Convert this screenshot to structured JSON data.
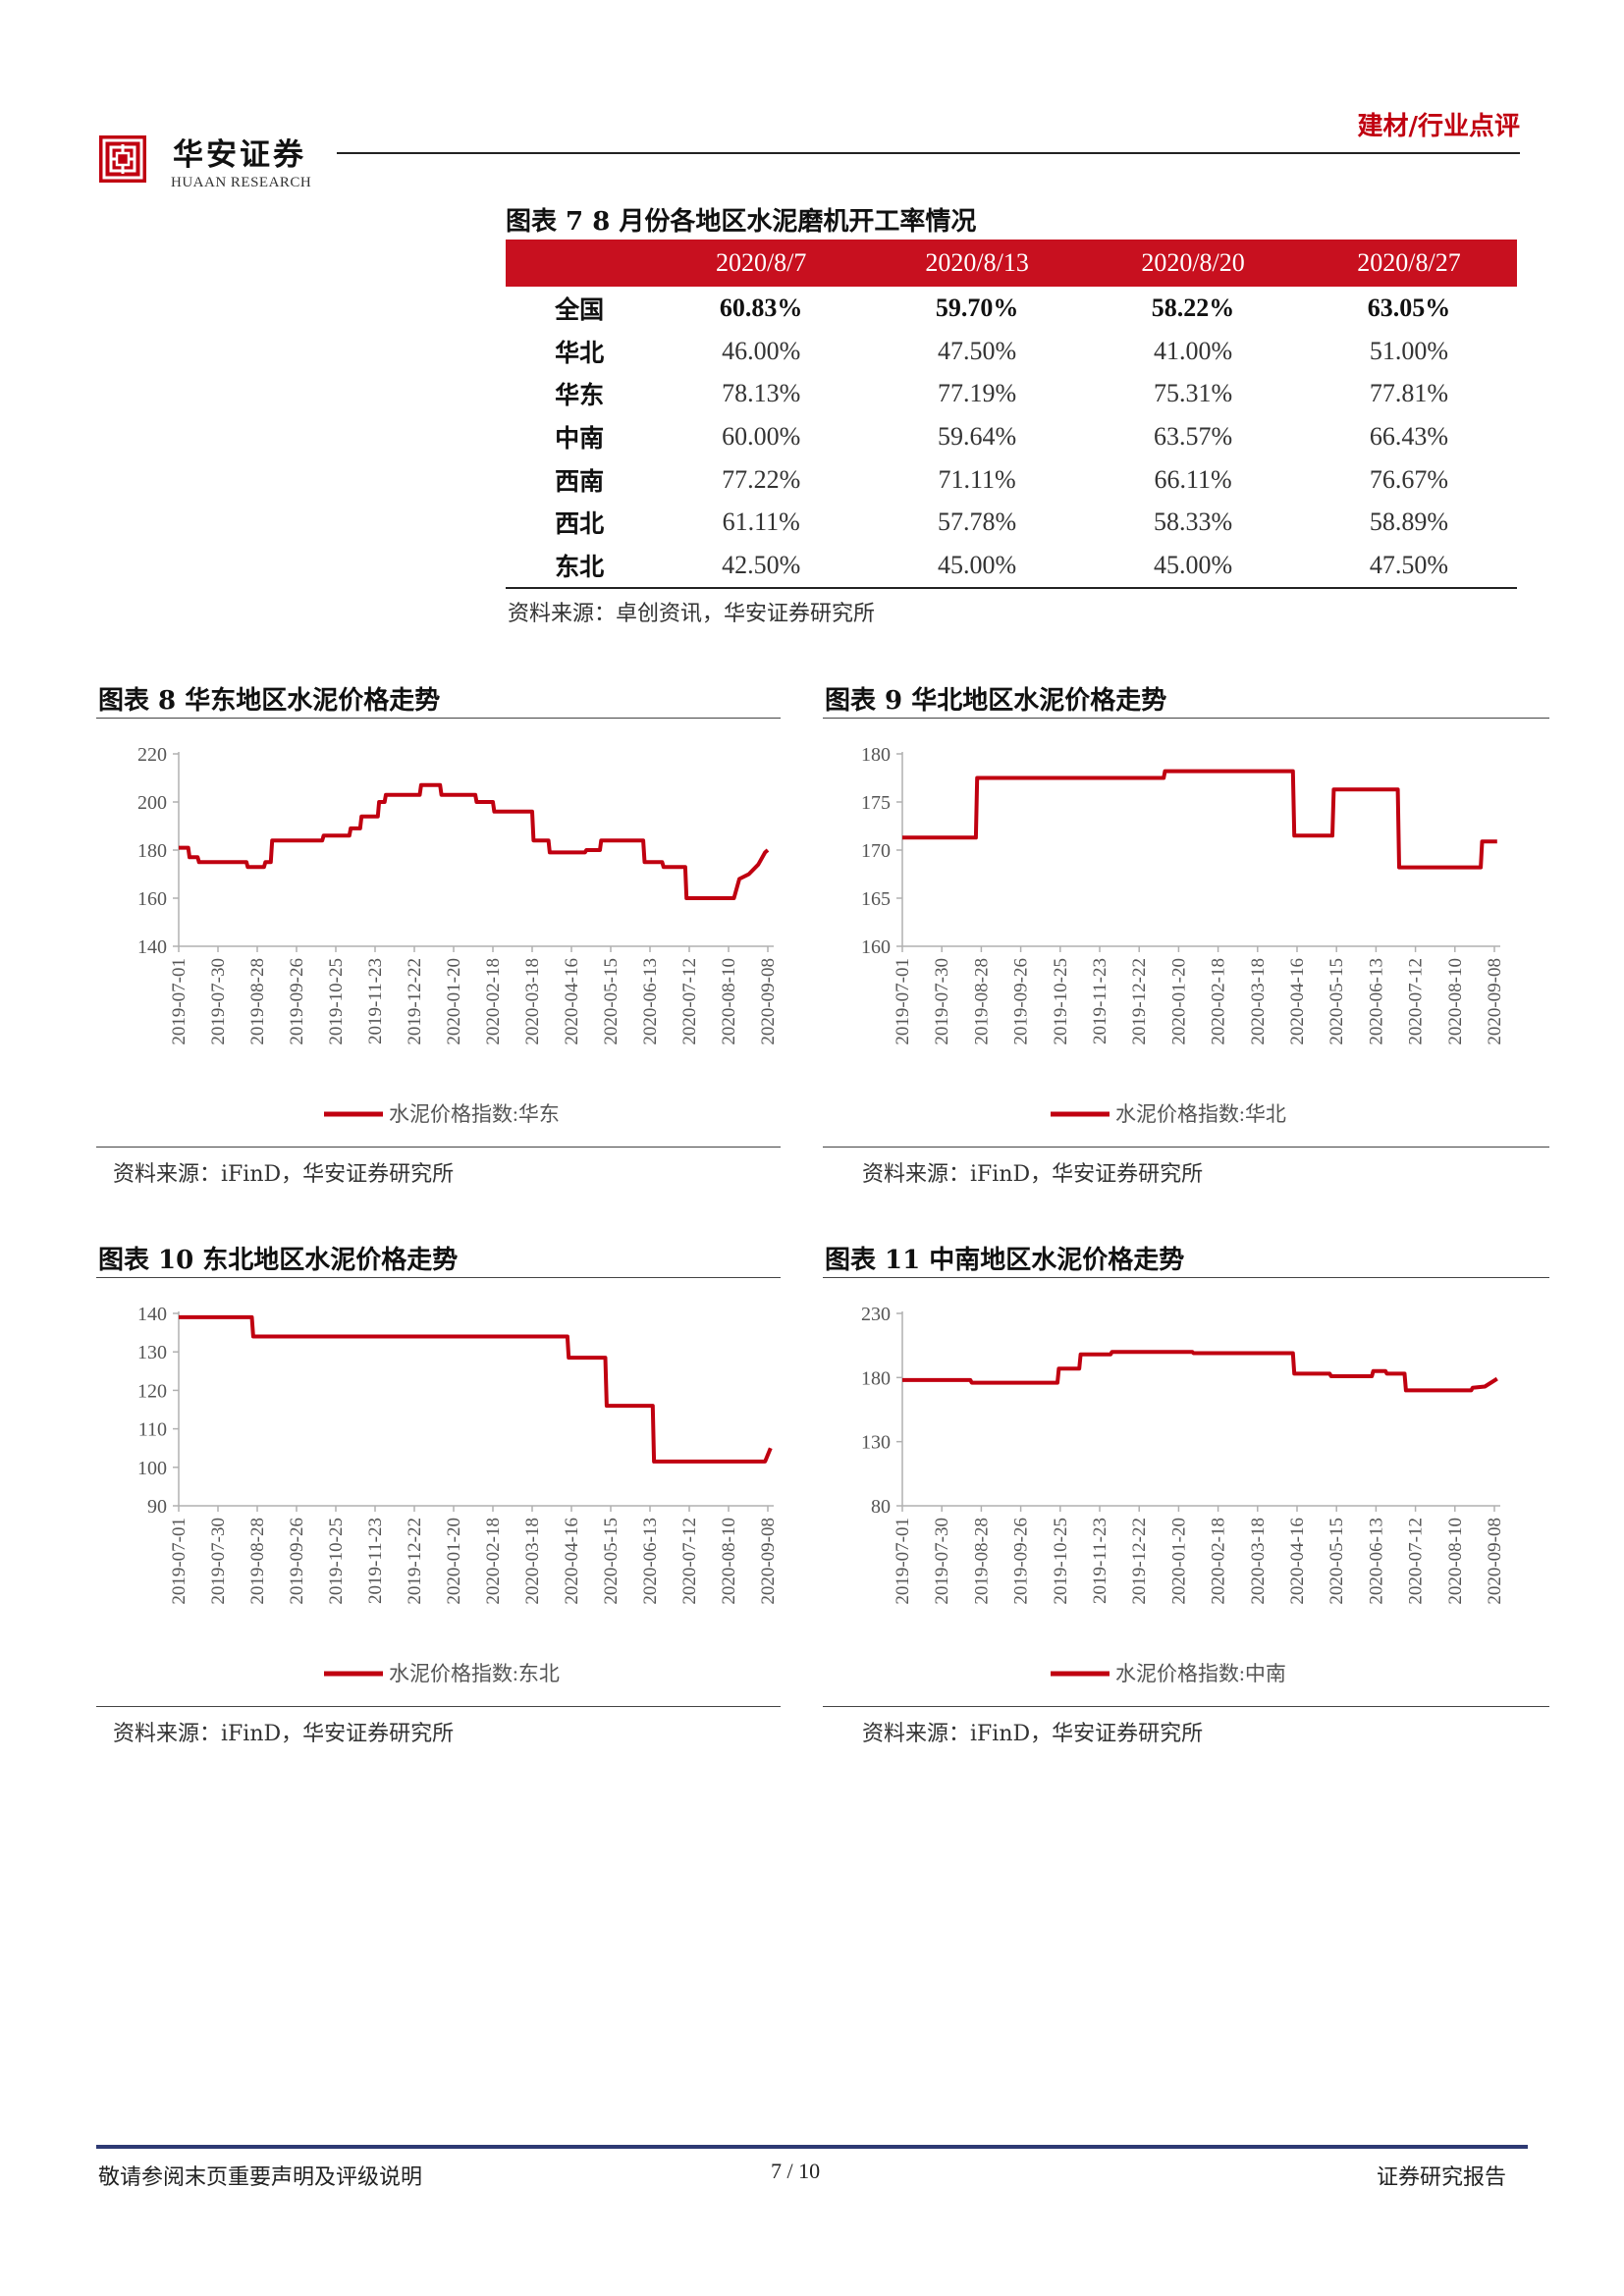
{
  "header": {
    "logo_cn": "华安证券",
    "logo_en": "HUAAN RESEARCH",
    "category": "建材/行业点评"
  },
  "table7": {
    "title": "图表 7 8 月份各地区水泥磨机开工率情况",
    "columns": [
      "",
      "2020/8/7",
      "2020/8/13",
      "2020/8/20",
      "2020/8/27"
    ],
    "rows": [
      {
        "region": "全国",
        "values": [
          "60.83%",
          "59.70%",
          "58.22%",
          "63.05%"
        ],
        "bold": true
      },
      {
        "region": "华北",
        "values": [
          "46.00%",
          "47.50%",
          "41.00%",
          "51.00%"
        ]
      },
      {
        "region": "华东",
        "values": [
          "78.13%",
          "77.19%",
          "75.31%",
          "77.81%"
        ]
      },
      {
        "region": "中南",
        "values": [
          "60.00%",
          "59.64%",
          "63.57%",
          "66.43%"
        ]
      },
      {
        "region": "西南",
        "values": [
          "77.22%",
          "71.11%",
          "66.11%",
          "76.67%"
        ]
      },
      {
        "region": "西北",
        "values": [
          "61.11%",
          "57.78%",
          "58.33%",
          "58.89%"
        ]
      },
      {
        "region": "东北",
        "values": [
          "42.50%",
          "45.00%",
          "45.00%",
          "47.50%"
        ]
      }
    ],
    "source": "资料来源：卓创资讯，华安证券研究所"
  },
  "chart_data": [
    {
      "type": "line",
      "title": "图表 8 华东地区水泥价格走势",
      "xticks": [
        "2019-07-01",
        "2019-07-30",
        "2019-08-28",
        "2019-09-26",
        "2019-10-25",
        "2019-11-23",
        "2019-12-22",
        "2020-01-20",
        "2020-02-18",
        "2020-03-18",
        "2020-04-16",
        "2020-05-15",
        "2020-06-13",
        "2020-07-12",
        "2020-08-10",
        "2020-09-08"
      ],
      "ylim": [
        140,
        220
      ],
      "yticks": [
        140,
        160,
        180,
        200,
        220
      ],
      "color": "#c00010",
      "series": [
        {
          "name": "水泥价格指数:华东",
          "values": [
            [
              "2019-07-01",
              181
            ],
            [
              "2019-07-08",
              181
            ],
            [
              "2019-07-09",
              177
            ],
            [
              "2019-07-15",
              177
            ],
            [
              "2019-07-16",
              175
            ],
            [
              "2019-08-20",
              175
            ],
            [
              "2019-08-21",
              173
            ],
            [
              "2019-09-02",
              173
            ],
            [
              "2019-09-03",
              175
            ],
            [
              "2019-09-07",
              175
            ],
            [
              "2019-09-08",
              184
            ],
            [
              "2019-10-15",
              184
            ],
            [
              "2019-10-16",
              186
            ],
            [
              "2019-11-04",
              186
            ],
            [
              "2019-11-05",
              189
            ],
            [
              "2019-11-12",
              189
            ],
            [
              "2019-11-13",
              194
            ],
            [
              "2019-11-25",
              194
            ],
            [
              "2019-11-26",
              200
            ],
            [
              "2019-11-30",
              200
            ],
            [
              "2019-12-01",
              203
            ],
            [
              "2019-12-26",
              203
            ],
            [
              "2019-12-27",
              207
            ],
            [
              "2020-01-10",
              207
            ],
            [
              "2020-01-11",
              203
            ],
            [
              "2020-02-05",
              203
            ],
            [
              "2020-02-06",
              200
            ],
            [
              "2020-02-18",
              200
            ],
            [
              "2020-02-19",
              196
            ],
            [
              "2020-03-18",
              196
            ],
            [
              "2020-03-19",
              184
            ],
            [
              "2020-03-30",
              184
            ],
            [
              "2020-03-31",
              179
            ],
            [
              "2020-04-26",
              179
            ],
            [
              "2020-04-27",
              180
            ],
            [
              "2020-05-07",
              180
            ],
            [
              "2020-05-08",
              184
            ],
            [
              "2020-06-08",
              184
            ],
            [
              "2020-06-09",
              175
            ],
            [
              "2020-06-22",
              175
            ],
            [
              "2020-06-23",
              173
            ],
            [
              "2020-07-09",
              173
            ],
            [
              "2020-07-10",
              160
            ],
            [
              "2020-08-14",
              160
            ],
            [
              "2020-08-18",
              168
            ],
            [
              "2020-08-25",
              170
            ],
            [
              "2020-09-01",
              174
            ],
            [
              "2020-09-06",
              179
            ],
            [
              "2020-09-08",
              180
            ]
          ]
        }
      ]
    },
    {
      "type": "line",
      "title": "图表 9 华北地区水泥价格走势",
      "xticks": [
        "2019-07-01",
        "2019-07-30",
        "2019-08-28",
        "2019-09-26",
        "2019-10-25",
        "2019-11-23",
        "2019-12-22",
        "2020-01-20",
        "2020-02-18",
        "2020-03-18",
        "2020-04-16",
        "2020-05-15",
        "2020-06-13",
        "2020-07-12",
        "2020-08-10",
        "2020-09-08"
      ],
      "ylim": [
        160,
        180
      ],
      "yticks": [
        160,
        165,
        170,
        175,
        180
      ],
      "color": "#c00010",
      "series": [
        {
          "name": "水泥价格指数:华北",
          "values": [
            [
              "2019-07-01",
              171.3
            ],
            [
              "2019-08-24",
              171.3
            ],
            [
              "2019-08-25",
              177.5
            ],
            [
              "2020-01-09",
              177.5
            ],
            [
              "2020-01-10",
              178.2
            ],
            [
              "2020-04-13",
              178.2
            ],
            [
              "2020-04-14",
              171.5
            ],
            [
              "2020-05-12",
              171.5
            ],
            [
              "2020-05-13",
              176.3
            ],
            [
              "2020-06-29",
              176.3
            ],
            [
              "2020-06-30",
              168.2
            ],
            [
              "2020-08-29",
              168.2
            ],
            [
              "2020-08-30",
              170.9
            ],
            [
              "2020-09-10",
              170.9
            ]
          ]
        }
      ]
    },
    {
      "type": "line",
      "title": "图表 10 东北地区水泥价格走势",
      "xticks": [
        "2019-07-01",
        "2019-07-30",
        "2019-08-28",
        "2019-09-26",
        "2019-10-25",
        "2019-11-23",
        "2019-12-22",
        "2020-01-20",
        "2020-02-18",
        "2020-03-18",
        "2020-04-16",
        "2020-05-15",
        "2020-06-13",
        "2020-07-12",
        "2020-08-10",
        "2020-09-08"
      ],
      "ylim": [
        90,
        140
      ],
      "yticks": [
        90,
        100,
        110,
        120,
        130,
        140
      ],
      "color": "#c00010",
      "series": [
        {
          "name": "水泥价格指数:东北",
          "values": [
            [
              "2019-07-01",
              139
            ],
            [
              "2019-08-24",
              139
            ],
            [
              "2019-08-25",
              134
            ],
            [
              "2020-04-13",
              134
            ],
            [
              "2020-04-14",
              128.5
            ],
            [
              "2020-05-11",
              128.5
            ],
            [
              "2020-05-12",
              116
            ],
            [
              "2020-06-15",
              116
            ],
            [
              "2020-06-16",
              101.5
            ],
            [
              "2020-09-06",
              101.5
            ],
            [
              "2020-09-10",
              105
            ]
          ]
        }
      ]
    },
    {
      "type": "line",
      "title": "图表 11 中南地区水泥价格走势",
      "xticks": [
        "2019-07-01",
        "2019-07-30",
        "2019-08-28",
        "2019-09-26",
        "2019-10-25",
        "2019-11-23",
        "2019-12-22",
        "2020-01-20",
        "2020-02-18",
        "2020-03-18",
        "2020-04-16",
        "2020-05-15",
        "2020-06-13",
        "2020-07-12",
        "2020-08-10",
        "2020-09-08"
      ],
      "ylim": [
        80,
        230
      ],
      "yticks": [
        80,
        130,
        180,
        230
      ],
      "color": "#c00010",
      "series": [
        {
          "name": "水泥价格指数:中南",
          "values": [
            [
              "2019-07-01",
              178
            ],
            [
              "2019-08-20",
              178
            ],
            [
              "2019-08-21",
              176
            ],
            [
              "2019-10-23",
              176
            ],
            [
              "2019-10-24",
              187
            ],
            [
              "2019-11-08",
              187
            ],
            [
              "2019-11-09",
              198
            ],
            [
              "2019-12-01",
              198
            ],
            [
              "2019-12-02",
              200
            ],
            [
              "2020-01-30",
              200
            ],
            [
              "2020-01-31",
              199
            ],
            [
              "2020-04-13",
              199
            ],
            [
              "2020-04-14",
              183
            ],
            [
              "2020-05-10",
              183
            ],
            [
              "2020-05-11",
              181
            ],
            [
              "2020-06-10",
              181
            ],
            [
              "2020-06-11",
              185
            ],
            [
              "2020-06-20",
              185
            ],
            [
              "2020-06-21",
              183
            ],
            [
              "2020-07-04",
              183
            ],
            [
              "2020-07-05",
              170
            ],
            [
              "2020-08-22",
              170
            ],
            [
              "2020-08-23",
              172
            ],
            [
              "2020-09-01",
              173
            ],
            [
              "2020-09-10",
              179
            ]
          ]
        }
      ]
    }
  ],
  "chart_sources": [
    "资料来源：iFinD，华安证券研究所",
    "资料来源：iFinD，华安证券研究所",
    "资料来源：iFinD，华安证券研究所",
    "资料来源：iFinD，华安证券研究所"
  ],
  "footer": {
    "left": "敬请参阅末页重要声明及评级说明",
    "page": "7 / 10",
    "right": "证券研究报告"
  }
}
